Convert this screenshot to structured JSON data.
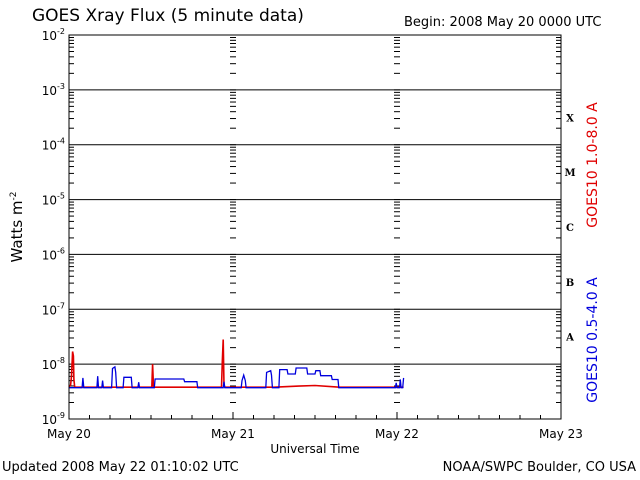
{
  "header": {
    "title": "GOES Xray Flux (5 minute data)",
    "begin": "Begin:  2008 May 20 0000 UTC"
  },
  "footer": {
    "updated": "Updated 2008 May 22 01:10:02 UTC",
    "credit": "NOAA/SWPC Boulder, CO USA"
  },
  "chart_data": {
    "type": "line",
    "title": "GOES Xray Flux (5 minute data)",
    "xlabel": "Universal Time",
    "ylabel": "Watts m",
    "ylabel_exp": "-2",
    "y_scale": "log",
    "ylim_exponents": [
      -9,
      -2
    ],
    "y_ticks": [
      {
        "base": "10",
        "exp": "-2"
      },
      {
        "base": "10",
        "exp": "-3"
      },
      {
        "base": "10",
        "exp": "-4"
      },
      {
        "base": "10",
        "exp": "-5"
      },
      {
        "base": "10",
        "exp": "-6"
      },
      {
        "base": "10",
        "exp": "-7"
      },
      {
        "base": "10",
        "exp": "-8"
      },
      {
        "base": "10",
        "exp": "-9"
      }
    ],
    "x_range_days": [
      0,
      3
    ],
    "x_tick_labels": [
      "May 20",
      "May 21",
      "May 22",
      "May 23"
    ],
    "flare_classes": [
      "X",
      "M",
      "C",
      "B",
      "A"
    ],
    "grid": "horizontal lines at each decade",
    "series": [
      {
        "name": "GOES10 1.0-8.0 A",
        "color": "#e00000",
        "points": [
          [
            0.0,
            -8.42
          ],
          [
            0.01,
            -8.38
          ],
          [
            0.015,
            -8.22
          ],
          [
            0.022,
            -7.77
          ],
          [
            0.027,
            -7.85
          ],
          [
            0.03,
            -8.28
          ],
          [
            0.035,
            -8.42
          ],
          [
            0.4,
            -8.42
          ],
          [
            0.505,
            -8.42
          ],
          [
            0.51,
            -8.0
          ],
          [
            0.515,
            -8.42
          ],
          [
            0.93,
            -8.42
          ],
          [
            0.935,
            -7.96
          ],
          [
            0.94,
            -7.55
          ],
          [
            0.945,
            -8.38
          ],
          [
            0.95,
            -8.42
          ],
          [
            1.25,
            -8.42
          ],
          [
            1.4,
            -8.4
          ],
          [
            1.5,
            -8.39
          ],
          [
            1.65,
            -8.42
          ],
          [
            2.04,
            -8.42
          ]
        ]
      },
      {
        "name": "GOES10 0.5-4.0 A",
        "color": "#0000dd",
        "points": [
          [
            0.0,
            -8.43
          ],
          [
            0.08,
            -8.43
          ],
          [
            0.085,
            -8.25
          ],
          [
            0.09,
            -8.43
          ],
          [
            0.17,
            -8.43
          ],
          [
            0.175,
            -8.22
          ],
          [
            0.18,
            -8.43
          ],
          [
            0.2,
            -8.43
          ],
          [
            0.205,
            -8.3
          ],
          [
            0.21,
            -8.43
          ],
          [
            0.26,
            -8.43
          ],
          [
            0.265,
            -8.08
          ],
          [
            0.28,
            -8.05
          ],
          [
            0.285,
            -8.15
          ],
          [
            0.29,
            -8.43
          ],
          [
            0.33,
            -8.43
          ],
          [
            0.335,
            -8.24
          ],
          [
            0.38,
            -8.24
          ],
          [
            0.385,
            -8.43
          ],
          [
            0.42,
            -8.43
          ],
          [
            0.425,
            -8.33
          ],
          [
            0.43,
            -8.43
          ],
          [
            0.5,
            -8.43
          ],
          [
            0.52,
            -8.43
          ],
          [
            0.525,
            -8.27
          ],
          [
            0.7,
            -8.27
          ],
          [
            0.705,
            -8.32
          ],
          [
            0.78,
            -8.32
          ],
          [
            0.785,
            -8.43
          ],
          [
            0.94,
            -8.43
          ],
          [
            0.945,
            -8.32
          ],
          [
            0.95,
            -8.43
          ],
          [
            1.05,
            -8.43
          ],
          [
            1.055,
            -8.3
          ],
          [
            1.065,
            -8.2
          ],
          [
            1.075,
            -8.3
          ],
          [
            1.08,
            -8.43
          ],
          [
            1.2,
            -8.43
          ],
          [
            1.205,
            -8.15
          ],
          [
            1.23,
            -8.12
          ],
          [
            1.235,
            -8.2
          ],
          [
            1.24,
            -8.43
          ],
          [
            1.28,
            -8.43
          ],
          [
            1.285,
            -8.1
          ],
          [
            1.33,
            -8.1
          ],
          [
            1.335,
            -8.18
          ],
          [
            1.38,
            -8.18
          ],
          [
            1.385,
            -8.07
          ],
          [
            1.45,
            -8.07
          ],
          [
            1.455,
            -8.18
          ],
          [
            1.5,
            -8.18
          ],
          [
            1.505,
            -8.12
          ],
          [
            1.53,
            -8.12
          ],
          [
            1.535,
            -8.21
          ],
          [
            1.6,
            -8.21
          ],
          [
            1.605,
            -8.28
          ],
          [
            1.64,
            -8.28
          ],
          [
            1.645,
            -8.43
          ],
          [
            1.8,
            -8.43
          ],
          [
            1.99,
            -8.43
          ],
          [
            1.995,
            -8.34
          ],
          [
            2.0,
            -8.43
          ],
          [
            2.015,
            -8.43
          ],
          [
            2.02,
            -8.28
          ],
          [
            2.025,
            -8.43
          ],
          [
            2.035,
            -8.43
          ],
          [
            2.04,
            -8.25
          ]
        ]
      }
    ]
  }
}
